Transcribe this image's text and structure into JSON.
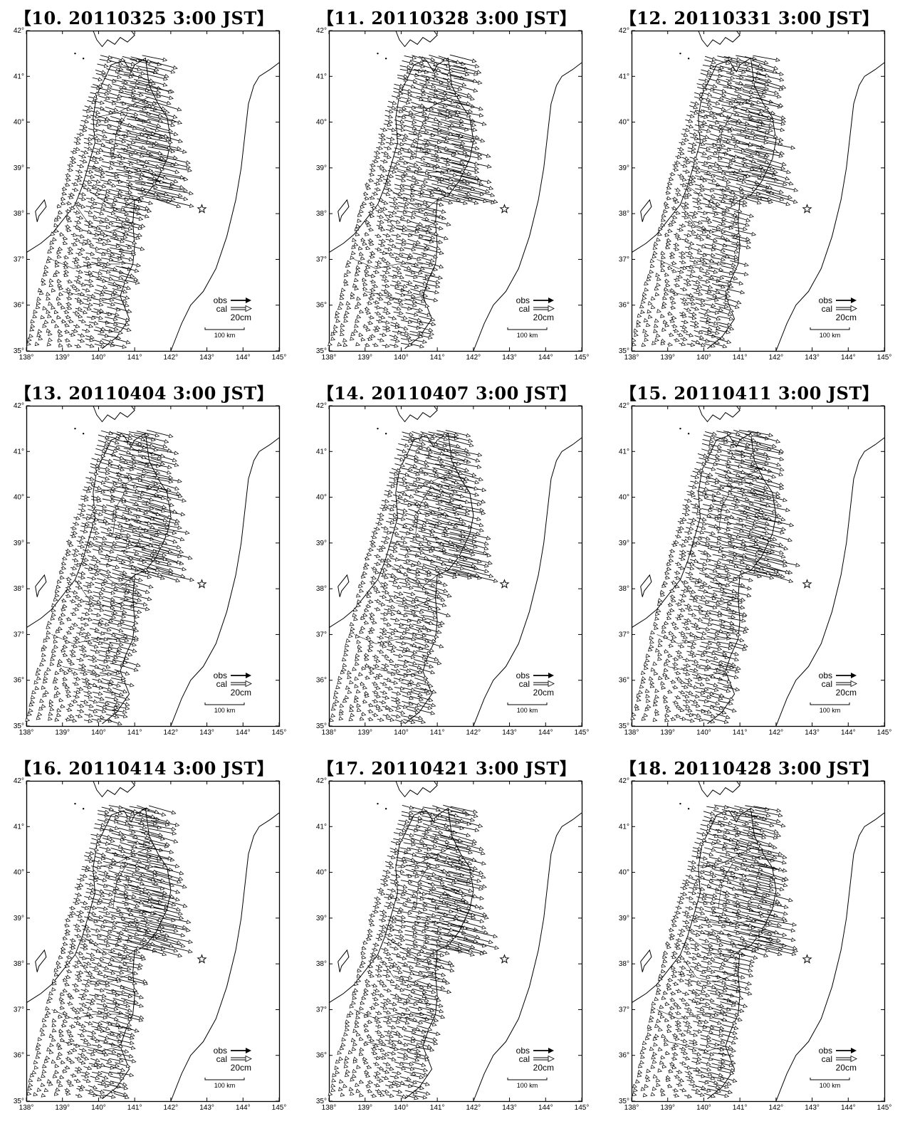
{
  "map": {
    "lon_range": [
      138,
      145
    ],
    "lat_range": [
      35,
      42
    ],
    "lon_ticks": [
      "138°",
      "139°",
      "140°",
      "141°",
      "142°",
      "143°",
      "144°",
      "145°"
    ],
    "lat_ticks": [
      "35°",
      "36°",
      "37°",
      "38°",
      "39°",
      "40°",
      "41°",
      "42°"
    ],
    "epicenter": {
      "lon": 142.86,
      "lat": 38.1
    }
  },
  "legend": {
    "obs_label": "obs",
    "cal_label": "cal",
    "scale_label": "20cm",
    "km_label": "100 km"
  },
  "panels": [
    {
      "id": 10,
      "title": "【10. 20110325 3:00 JST】"
    },
    {
      "id": 11,
      "title": "【11. 20110328 3:00 JST】"
    },
    {
      "id": 12,
      "title": "【12. 20110331 3:00 JST】"
    },
    {
      "id": 13,
      "title": "【13. 20110404 3:00 JST】"
    },
    {
      "id": 14,
      "title": "【14. 20110407 3:00 JST】"
    },
    {
      "id": 15,
      "title": "【15. 20110411 3:00 JST】"
    },
    {
      "id": 16,
      "title": "【16. 20110414 3:00 JST】"
    },
    {
      "id": 17,
      "title": "【17. 20110421 3:00 JST】"
    },
    {
      "id": 18,
      "title": "【18. 20110428 3:00 JST】"
    }
  ],
  "colors": {
    "ink": "#000000",
    "paper": "#ffffff"
  }
}
